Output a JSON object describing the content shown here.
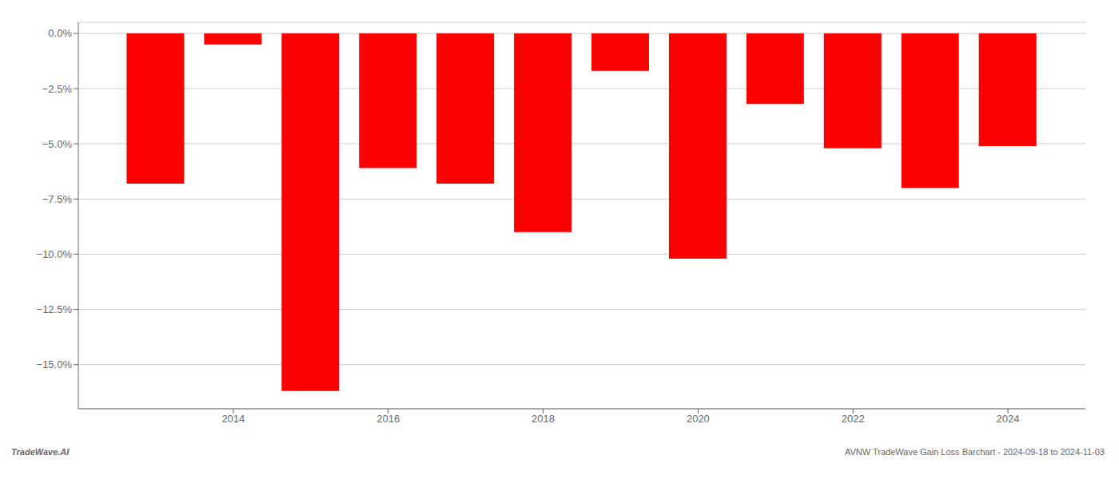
{
  "chart_data": {
    "type": "bar",
    "x": [
      2013,
      2014,
      2015,
      2016,
      2017,
      2018,
      2019,
      2020,
      2021,
      2022,
      2023,
      2024
    ],
    "values": [
      -6.8,
      -0.5,
      -16.2,
      -6.1,
      -6.8,
      -9.0,
      -1.7,
      -10.2,
      -3.2,
      -5.2,
      -7.0,
      -5.1
    ],
    "color": "#ff0000",
    "xlim": [
      2012,
      2025
    ],
    "xticks": [
      2014,
      2016,
      2018,
      2020,
      2022,
      2024
    ],
    "ylim": [
      -17.0,
      0.5
    ],
    "yticks": [
      {
        "value": 0,
        "label": "0.0%"
      },
      {
        "value": -2.5,
        "label": "−2.5%"
      },
      {
        "value": -5.0,
        "label": "−5.0%"
      },
      {
        "value": -7.5,
        "label": "−7.5%"
      },
      {
        "value": -10.0,
        "label": "−10.0%"
      },
      {
        "value": -12.5,
        "label": "−12.5%"
      },
      {
        "value": -15.0,
        "label": "−15.0%"
      }
    ],
    "grid": true,
    "annotations": [
      "TradeWave.AI",
      "AVNW TradeWave Gain Loss Barchart - 2024-09-18 to 2024-11-03"
    ]
  }
}
